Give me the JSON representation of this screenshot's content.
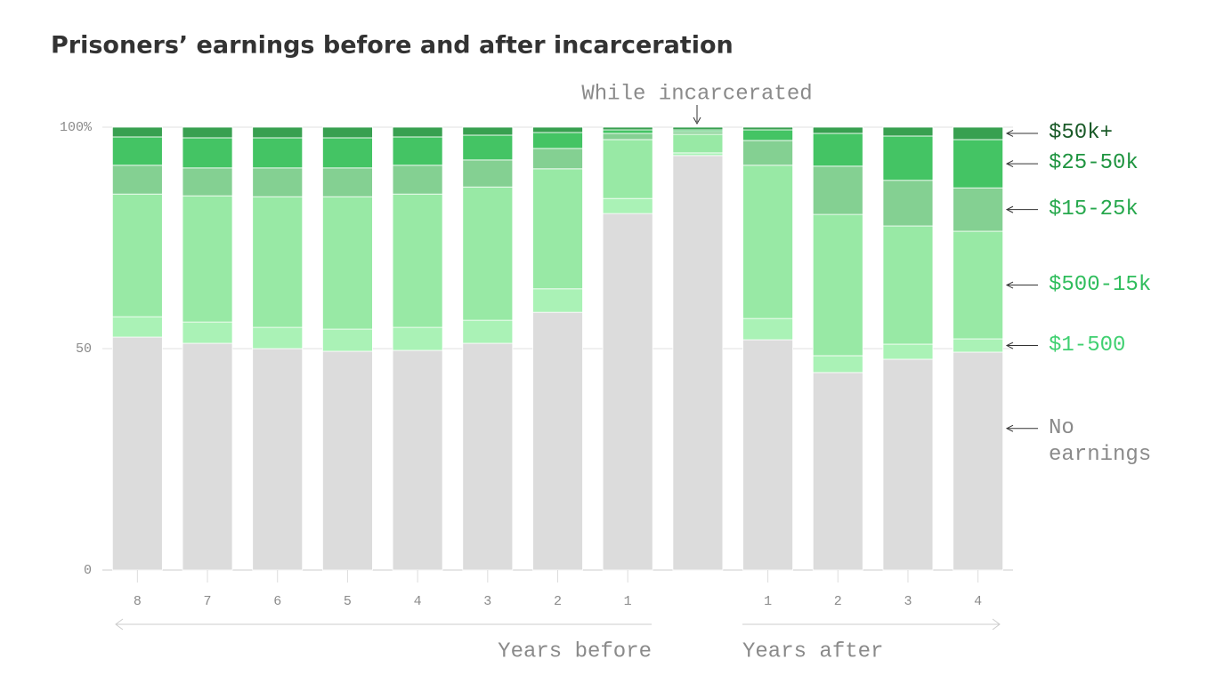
{
  "chart_data": {
    "type": "stacked_bar",
    "title": "Prisoners’ earnings before and after incarceration",
    "annotation": "While incarcerated",
    "groups": [
      "Years before",
      "Years after"
    ],
    "categories": [
      "8",
      "7",
      "6",
      "5",
      "4",
      "3",
      "2",
      "1",
      null,
      "1",
      "2",
      "3",
      "4"
    ],
    "series": [
      {
        "name": "No earnings",
        "color": "#dcdcdc",
        "label_color": "#8a8a8a",
        "values": [
          52.6,
          51.2,
          50.0,
          49.4,
          49.6,
          51.2,
          58.2,
          80.5,
          93.6,
          52.0,
          44.6,
          47.6,
          49.2
        ]
      },
      {
        "name": "$1-500",
        "color": "#aaf2b6",
        "label_color": "#3fd070",
        "values": [
          4.6,
          4.8,
          4.8,
          5.0,
          5.2,
          5.2,
          5.3,
          3.4,
          0.6,
          4.8,
          3.8,
          3.4,
          3.0
        ]
      },
      {
        "name": "$500-15k",
        "color": "#98e9a5",
        "label_color": "#2fbd5c",
        "values": [
          27.7,
          28.5,
          29.5,
          29.9,
          30.1,
          30.1,
          27.1,
          13.3,
          4.2,
          34.6,
          31.9,
          26.7,
          24.3
        ]
      },
      {
        "name": "$15-25k",
        "color": "#84d092",
        "label_color": "#27a84d",
        "values": [
          6.5,
          6.3,
          6.5,
          6.5,
          6.5,
          6.1,
          4.6,
          1.4,
          0.6,
          5.6,
          10.9,
          10.3,
          9.8
        ]
      },
      {
        "name": "$25-50k",
        "color": "#44c464",
        "label_color": "#1f9440",
        "values": [
          6.4,
          6.8,
          6.8,
          6.8,
          6.4,
          5.6,
          3.6,
          0.8,
          0.4,
          2.4,
          7.4,
          10.0,
          10.9
        ]
      },
      {
        "name": "$50k+",
        "color": "#38a050",
        "label_color": "#1a5a28",
        "values": [
          2.2,
          2.4,
          2.4,
          2.4,
          2.2,
          1.8,
          1.2,
          0.6,
          0.6,
          0.6,
          1.4,
          2.0,
          2.8
        ]
      }
    ],
    "ylim": [
      0,
      100
    ],
    "yticks": [
      0,
      50,
      {
        "value": 100,
        "label": "100%"
      }
    ],
    "grid": true
  }
}
